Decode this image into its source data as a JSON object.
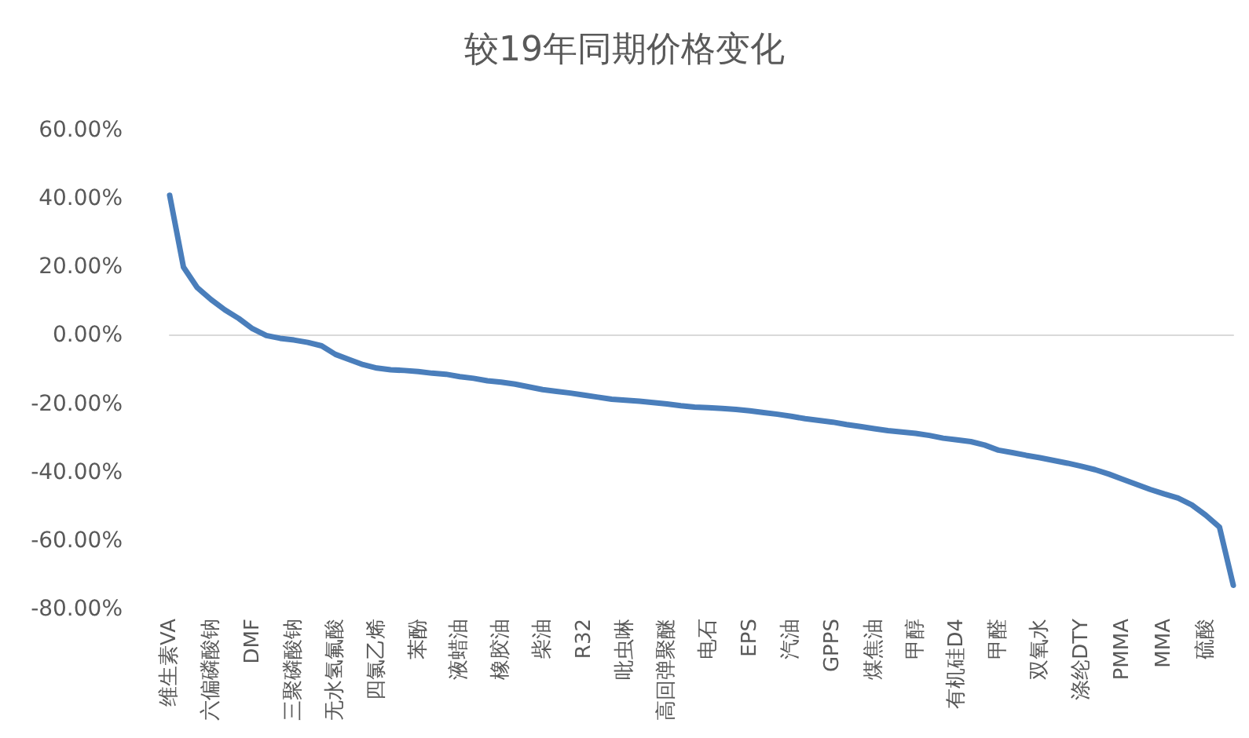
{
  "chart_data": {
    "type": "line",
    "title": "较19年同期价格变化",
    "categories": [
      "维生素VA",
      null,
      null,
      "六偏磷酸钠",
      null,
      null,
      "DMF",
      null,
      null,
      "三聚磷酸钠",
      null,
      null,
      "无水氢氟酸",
      null,
      null,
      "四氯乙烯",
      null,
      null,
      "苯酚",
      null,
      null,
      "液蜡油",
      null,
      null,
      "橡胶油",
      null,
      null,
      "柴油",
      null,
      null,
      "R32",
      null,
      null,
      "吡虫啉",
      null,
      null,
      "高回弹聚醚",
      null,
      null,
      "电石",
      null,
      null,
      "EPS",
      null,
      null,
      "汽油",
      null,
      null,
      "GPPS",
      null,
      null,
      "煤焦油",
      null,
      null,
      "甲醇",
      null,
      null,
      "有机硅D4",
      null,
      null,
      "甲醛",
      null,
      null,
      "双氧水",
      null,
      null,
      "涤纶DTY",
      null,
      null,
      "PMMA",
      null,
      null,
      "MMA",
      null,
      null,
      "硫酸",
      null,
      null
    ],
    "series": [
      {
        "color": "#4a7ebb",
        "values": [
          41,
          20,
          14,
          10.5,
          7.5,
          5,
          2,
          0,
          -0.8,
          -1.3,
          -2,
          -3,
          -5.5,
          -7,
          -8.5,
          -9.5,
          -10,
          -10.2,
          -10.5,
          -11,
          -11.3,
          -12,
          -12.5,
          -13.2,
          -13.6,
          -14.2,
          -15,
          -15.8,
          -16.3,
          -16.8,
          -17.4,
          -18,
          -18.6,
          -18.9,
          -19.2,
          -19.6,
          -20,
          -20.5,
          -20.9,
          -21.1,
          -21.3,
          -21.6,
          -22,
          -22.5,
          -23,
          -23.6,
          -24.3,
          -24.8,
          -25.3,
          -26,
          -26.6,
          -27.2,
          -27.8,
          -28.2,
          -28.6,
          -29.2,
          -30,
          -30.5,
          -31,
          -32,
          -33.5,
          -34.2,
          -35,
          -35.7,
          -36.5,
          -37.3,
          -38.2,
          -39.2,
          -40.5,
          -42,
          -43.5,
          -45,
          -46.3,
          -47.5,
          -49.5,
          -52.5,
          -56,
          -73
        ]
      }
    ],
    "ylim": [
      -80,
      60
    ],
    "yticks": [
      {
        "value": -80,
        "label": "-80.00%"
      },
      {
        "value": -60,
        "label": "-60.00%"
      },
      {
        "value": -40,
        "label": "-40.00%"
      },
      {
        "value": -20,
        "label": "-20.00%"
      },
      {
        "value": 0,
        "label": "0.00%"
      },
      {
        "value": 20,
        "label": "20.00%"
      },
      {
        "value": 40,
        "label": "40.00%"
      },
      {
        "value": 60,
        "label": "60.00%"
      }
    ],
    "marker": "none",
    "line_style": "solid"
  }
}
